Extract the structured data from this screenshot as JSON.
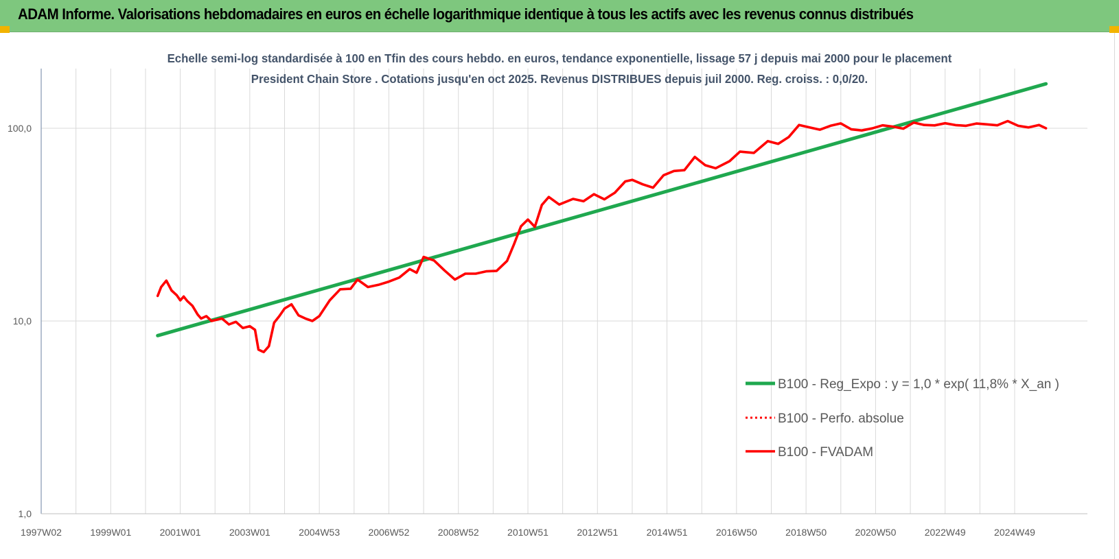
{
  "header": {
    "title": "ADAM Informe. Valorisations hebdomadaires en euros en échelle logarithmique identique à tous les actifs avec les revenus connus distribués",
    "background": "#7ec77e"
  },
  "chart_data": {
    "type": "line",
    "title": "Echelle semi-log standardisée à 100 en Tfin des cours hebdo. en euros, tendance exponentielle, lissage 57 j depuis mai 2000 pour le placement President Chain Store . Cotations jusqu'en oct 2025. Revenus DISTRIBUES depuis juil 2000. Reg. croiss. : 0,0/20.",
    "xlabel": "",
    "ylabel": "",
    "y_scale": "log",
    "ylim": [
      1,
      200
    ],
    "xlim": [
      1997.0,
      2025.9
    ],
    "y_ticks": [
      1,
      10,
      100
    ],
    "y_tick_labels": [
      "1,0",
      "10,0",
      "100,0"
    ],
    "x_tick_labels": [
      "1997W02",
      "1999W01",
      "2001W01",
      "2003W01",
      "2004W53",
      "2006W52",
      "2008W52",
      "2010W51",
      "2012W51",
      "2014W51",
      "2016W50",
      "2018W50",
      "2020W50",
      "2022W49",
      "2024W49"
    ],
    "x_tick_values": [
      1997.0,
      1999.0,
      2001.0,
      2003.0,
      2005.0,
      2007.0,
      2009.0,
      2011.0,
      2013.0,
      2015.0,
      2017.0,
      2019.0,
      2021.0,
      2023.0,
      2025.0
    ],
    "grid": "vertical",
    "legend_position": "lower-right",
    "series": [
      {
        "name": "B100 - Reg_Expo : y = 1,0 * exp( 11,8% *  X_an )",
        "color": "#1fa84f",
        "style": "solid",
        "x": [
          2000.35,
          2025.9
        ],
        "y": [
          8.4,
          170
        ]
      },
      {
        "name": "B100 - Perfo. absolue",
        "color": "#ff0000",
        "style": "dotted",
        "x": [],
        "y": []
      },
      {
        "name": "B100 - FVADAM",
        "color": "#ff0000",
        "style": "solid",
        "x": [
          2000.35,
          2000.45,
          2000.6,
          2000.75,
          2000.9,
          2001.0,
          2001.1,
          2001.2,
          2001.35,
          2001.5,
          2001.6,
          2001.75,
          2001.9,
          2002.0,
          2002.2,
          2002.4,
          2002.6,
          2002.8,
          2003.0,
          2003.15,
          2003.25,
          2003.4,
          2003.55,
          2003.7,
          2003.85,
          2004.0,
          2004.2,
          2004.4,
          2004.6,
          2004.8,
          2005.0,
          2005.3,
          2005.6,
          2005.9,
          2006.1,
          2006.4,
          2006.7,
          2007.0,
          2007.3,
          2007.6,
          2007.8,
          2008.0,
          2008.3,
          2008.6,
          2008.9,
          2009.2,
          2009.5,
          2009.8,
          2010.1,
          2010.4,
          2010.6,
          2010.8,
          2011.0,
          2011.2,
          2011.4,
          2011.6,
          2011.9,
          2012.3,
          2012.6,
          2012.9,
          2013.2,
          2013.5,
          2013.8,
          2014.0,
          2014.3,
          2014.6,
          2014.9,
          2015.2,
          2015.5,
          2015.8,
          2016.1,
          2016.4,
          2016.8,
          2017.1,
          2017.5,
          2017.9,
          2018.2,
          2018.5,
          2018.8,
          2019.1,
          2019.4,
          2019.7,
          2020.0,
          2020.3,
          2020.6,
          2020.9,
          2021.2,
          2021.5,
          2021.8,
          2022.1,
          2022.4,
          2022.7,
          2023.0,
          2023.3,
          2023.6,
          2023.9,
          2024.2,
          2024.5,
          2024.8,
          2025.1,
          2025.4,
          2025.7,
          2025.9
        ],
        "y": [
          13.5,
          15.0,
          16.2,
          14.4,
          13.6,
          12.8,
          13.4,
          12.7,
          12.0,
          10.8,
          10.3,
          10.6,
          10.0,
          10.1,
          10.3,
          9.6,
          9.9,
          9.2,
          9.4,
          9.0,
          7.1,
          6.9,
          7.4,
          9.8,
          10.6,
          11.6,
          12.2,
          10.7,
          10.3,
          10.0,
          10.6,
          12.8,
          14.6,
          14.7,
          16.4,
          15.0,
          15.4,
          16.0,
          16.8,
          18.6,
          17.8,
          21.5,
          20.6,
          18.3,
          16.4,
          17.6,
          17.6,
          18.1,
          18.2,
          20.5,
          25.0,
          31.0,
          33.6,
          30.8,
          40.0,
          44.0,
          40.2,
          43.0,
          41.8,
          45.5,
          42.8,
          46.3,
          53.0,
          54.0,
          51.2,
          49.2,
          57.0,
          60.0,
          60.6,
          71.0,
          64.3,
          62.0,
          67.5,
          75.6,
          74.5,
          85.8,
          83.0,
          90.0,
          104.0,
          101.0,
          98.3,
          103.0,
          106.0,
          98.7,
          97.4,
          99.8,
          103.6,
          102.0,
          99.5,
          107.0,
          104.0,
          103.5,
          106.2,
          103.8,
          103.0,
          105.8,
          104.8,
          103.6,
          109.0,
          103.0,
          101.0,
          104.0,
          100.0
        ]
      }
    ]
  }
}
